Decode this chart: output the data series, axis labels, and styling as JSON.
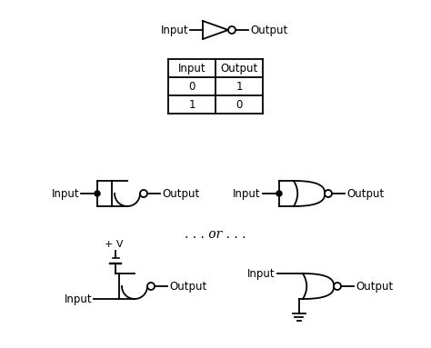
{
  "bg_color": "#ffffff",
  "text_color": "#000000",
  "line_color": "#000000",
  "font_size": 8.5,
  "table_headers": [
    "Input",
    "Output"
  ],
  "table_rows": [
    [
      "0",
      "1"
    ],
    [
      "1",
      "0"
    ]
  ],
  "or_text": ". . . or . . .",
  "plus_v_text": "+ V"
}
